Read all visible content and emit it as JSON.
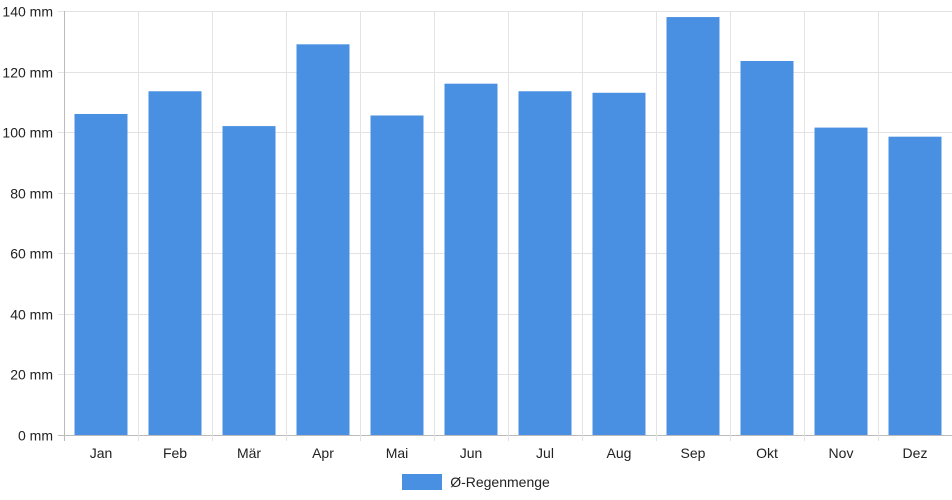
{
  "chart_data": {
    "type": "bar",
    "categories": [
      "Jan",
      "Feb",
      "Mär",
      "Apr",
      "Mai",
      "Jun",
      "Jul",
      "Aug",
      "Sep",
      "Okt",
      "Nov",
      "Dez"
    ],
    "series": [
      {
        "name": "Ø-Regenmenge",
        "values": [
          106,
          113.5,
          102,
          129,
          105.5,
          116,
          113.5,
          113,
          138,
          123.5,
          101.5,
          98.5
        ],
        "color": "#4a90e2"
      }
    ],
    "yticks": [
      "0 mm",
      "20 mm",
      "40 mm",
      "60 mm",
      "80 mm",
      "100 mm",
      "120 mm",
      "140 mm"
    ],
    "ylim": [
      0,
      140
    ],
    "grid": true,
    "legend_position": "bottom-center"
  }
}
